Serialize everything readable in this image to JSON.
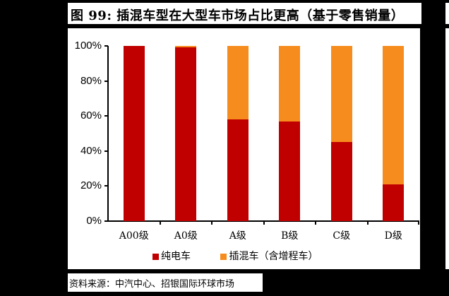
{
  "title": "图 99: 插混车型在大型车市场占比更高（基于零售销量）",
  "source": "资料来源：中汽中心、招银国际环球市场",
  "colors": {
    "bev": "#C00000",
    "phev": "#F78C1E"
  },
  "legend": [
    {
      "label": "纯电车",
      "color": "#C00000"
    },
    {
      "label": "插混车（含增程车）",
      "color": "#F78C1E"
    }
  ],
  "y_ticks": [
    "0%",
    "20%",
    "40%",
    "60%",
    "80%",
    "100%"
  ],
  "chart_data": {
    "type": "bar",
    "stacked": true,
    "title": "插混车型在大型车市场占比更高（基于零售销量）",
    "xlabel": "",
    "ylabel": "",
    "ylim": [
      0,
      100
    ],
    "y_ticks": [
      "0%",
      "20%",
      "40%",
      "60%",
      "80%",
      "100%"
    ],
    "categories": [
      "A00级",
      "A0级",
      "A级",
      "B级",
      "C级",
      "D级"
    ],
    "series": [
      {
        "name": "纯电车",
        "values": [
          100,
          99.2,
          58,
          57,
          45,
          21
        ]
      },
      {
        "name": "插混车（含增程车）",
        "values": [
          0,
          0.8,
          42,
          43,
          55,
          79
        ]
      }
    ],
    "legend_position": "bottom",
    "grid": false
  }
}
